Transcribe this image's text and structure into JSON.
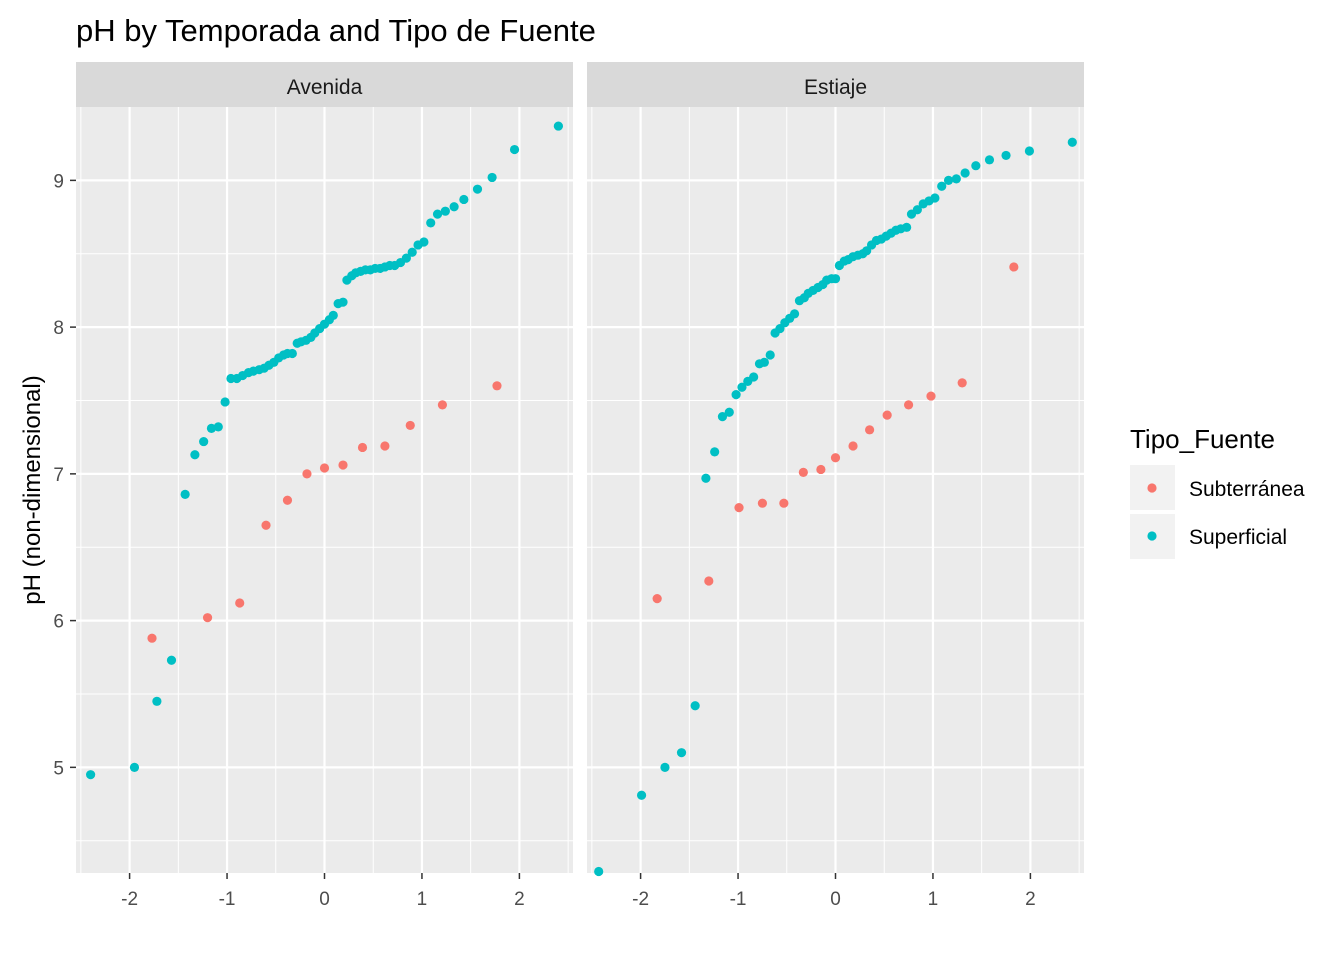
{
  "chart_data": {
    "type": "scatter",
    "title": "pH by Temporada and Tipo de Fuente",
    "xlabel": "",
    "ylabel": "pH (non-dimensional)",
    "xlim": [
      -2.55,
      2.55
    ],
    "ylim": [
      4.28,
      9.5
    ],
    "x_ticks": [
      -2,
      -1,
      0,
      1,
      2
    ],
    "x_tick_labels": [
      "-2",
      "-1",
      "0",
      "1",
      "2"
    ],
    "y_ticks": [
      5,
      6,
      7,
      8,
      9
    ],
    "y_tick_labels": [
      "5",
      "6",
      "7",
      "8",
      "9"
    ],
    "grid": true,
    "legend": {
      "title": "Tipo_Fuente",
      "position": "right",
      "entries": [
        {
          "label": "Subterránea",
          "color": "#F8766D"
        },
        {
          "label": "Superficial",
          "color": "#00BFC4"
        }
      ]
    },
    "facets": [
      {
        "name": "Avenida",
        "series": [
          {
            "name": "Subterránea",
            "color": "#F8766D",
            "points": [
              [
                -1.77,
                5.88
              ],
              [
                -1.2,
                6.02
              ],
              [
                -0.87,
                6.12
              ],
              [
                -0.6,
                6.65
              ],
              [
                -0.38,
                6.82
              ],
              [
                -0.18,
                7.0
              ],
              [
                0.0,
                7.04
              ],
              [
                0.19,
                7.06
              ],
              [
                0.39,
                7.18
              ],
              [
                0.62,
                7.19
              ],
              [
                0.88,
                7.33
              ],
              [
                1.21,
                7.47
              ],
              [
                1.77,
                7.6
              ]
            ]
          },
          {
            "name": "Superficial",
            "color": "#00BFC4",
            "points": [
              [
                -2.4,
                4.95
              ],
              [
                -1.95,
                5.0
              ],
              [
                -1.72,
                5.45
              ],
              [
                -1.57,
                5.73
              ],
              [
                -1.43,
                6.86
              ],
              [
                -1.33,
                7.13
              ],
              [
                -1.24,
                7.22
              ],
              [
                -1.16,
                7.31
              ],
              [
                -1.09,
                7.32
              ],
              [
                -1.02,
                7.49
              ],
              [
                -0.96,
                7.65
              ],
              [
                -0.9,
                7.65
              ],
              [
                -0.84,
                7.67
              ],
              [
                -0.78,
                7.69
              ],
              [
                -0.73,
                7.7
              ],
              [
                -0.67,
                7.71
              ],
              [
                -0.62,
                7.72
              ],
              [
                -0.57,
                7.74
              ],
              [
                -0.52,
                7.76
              ],
              [
                -0.47,
                7.79
              ],
              [
                -0.42,
                7.81
              ],
              [
                -0.38,
                7.82
              ],
              [
                -0.33,
                7.82
              ],
              [
                -0.28,
                7.89
              ],
              [
                -0.24,
                7.9
              ],
              [
                -0.19,
                7.91
              ],
              [
                -0.14,
                7.93
              ],
              [
                -0.1,
                7.96
              ],
              [
                -0.05,
                7.99
              ],
              [
                0.0,
                8.02
              ],
              [
                0.05,
                8.05
              ],
              [
                0.09,
                8.08
              ],
              [
                0.14,
                8.16
              ],
              [
                0.19,
                8.17
              ],
              [
                0.23,
                8.32
              ],
              [
                0.28,
                8.35
              ],
              [
                0.32,
                8.37
              ],
              [
                0.37,
                8.38
              ],
              [
                0.42,
                8.39
              ],
              [
                0.47,
                8.39
              ],
              [
                0.52,
                8.4
              ],
              [
                0.57,
                8.4
              ],
              [
                0.62,
                8.41
              ],
              [
                0.67,
                8.42
              ],
              [
                0.72,
                8.42
              ],
              [
                0.78,
                8.44
              ],
              [
                0.84,
                8.47
              ],
              [
                0.9,
                8.51
              ],
              [
                0.96,
                8.56
              ],
              [
                1.02,
                8.58
              ],
              [
                1.09,
                8.71
              ],
              [
                1.16,
                8.77
              ],
              [
                1.24,
                8.79
              ],
              [
                1.33,
                8.82
              ],
              [
                1.43,
                8.87
              ],
              [
                1.57,
                8.94
              ],
              [
                1.72,
                9.02
              ],
              [
                1.95,
                9.21
              ],
              [
                2.4,
                9.37
              ]
            ]
          }
        ]
      },
      {
        "name": "Estiaje",
        "series": [
          {
            "name": "Subterránea",
            "color": "#F8766D",
            "points": [
              [
                -1.83,
                6.15
              ],
              [
                -1.3,
                6.27
              ],
              [
                -0.99,
                6.77
              ],
              [
                -0.75,
                6.8
              ],
              [
                -0.53,
                6.8
              ],
              [
                -0.33,
                7.01
              ],
              [
                -0.15,
                7.03
              ],
              [
                0.0,
                7.11
              ],
              [
                0.18,
                7.19
              ],
              [
                0.35,
                7.3
              ],
              [
                0.53,
                7.4
              ],
              [
                0.75,
                7.47
              ],
              [
                0.98,
                7.53
              ],
              [
                1.3,
                7.62
              ],
              [
                1.83,
                8.41
              ]
            ]
          },
          {
            "name": "Superficial",
            "color": "#00BFC4",
            "points": [
              [
                -2.43,
                4.29
              ],
              [
                -1.99,
                4.81
              ],
              [
                -1.75,
                5.0
              ],
              [
                -1.58,
                5.1
              ],
              [
                -1.44,
                5.42
              ],
              [
                -1.33,
                6.97
              ],
              [
                -1.24,
                7.15
              ],
              [
                -1.16,
                7.39
              ],
              [
                -1.09,
                7.42
              ],
              [
                -1.02,
                7.54
              ],
              [
                -0.96,
                7.59
              ],
              [
                -0.9,
                7.63
              ],
              [
                -0.84,
                7.66
              ],
              [
                -0.78,
                7.75
              ],
              [
                -0.73,
                7.76
              ],
              [
                -0.67,
                7.81
              ],
              [
                -0.62,
                7.96
              ],
              [
                -0.57,
                7.99
              ],
              [
                -0.52,
                8.03
              ],
              [
                -0.47,
                8.06
              ],
              [
                -0.42,
                8.09
              ],
              [
                -0.37,
                8.18
              ],
              [
                -0.32,
                8.2
              ],
              [
                -0.28,
                8.23
              ],
              [
                -0.23,
                8.25
              ],
              [
                -0.18,
                8.27
              ],
              [
                -0.13,
                8.29
              ],
              [
                -0.09,
                8.32
              ],
              [
                -0.04,
                8.33
              ],
              [
                0.0,
                8.33
              ],
              [
                0.04,
                8.42
              ],
              [
                0.09,
                8.45
              ],
              [
                0.13,
                8.46
              ],
              [
                0.18,
                8.48
              ],
              [
                0.23,
                8.49
              ],
              [
                0.28,
                8.5
              ],
              [
                0.32,
                8.52
              ],
              [
                0.37,
                8.56
              ],
              [
                0.42,
                8.59
              ],
              [
                0.47,
                8.6
              ],
              [
                0.52,
                8.62
              ],
              [
                0.57,
                8.64
              ],
              [
                0.62,
                8.66
              ],
              [
                0.67,
                8.67
              ],
              [
                0.73,
                8.68
              ],
              [
                0.78,
                8.77
              ],
              [
                0.84,
                8.8
              ],
              [
                0.9,
                8.84
              ],
              [
                0.96,
                8.86
              ],
              [
                1.02,
                8.88
              ],
              [
                1.09,
                8.96
              ],
              [
                1.16,
                9.0
              ],
              [
                1.24,
                9.01
              ],
              [
                1.33,
                9.05
              ],
              [
                1.44,
                9.1
              ],
              [
                1.58,
                9.14
              ],
              [
                1.75,
                9.17
              ],
              [
                1.99,
                9.2
              ],
              [
                2.43,
                9.26
              ]
            ]
          }
        ]
      }
    ]
  }
}
